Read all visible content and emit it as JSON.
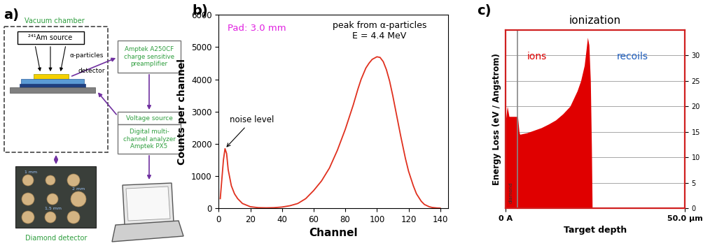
{
  "diagram": {
    "label": "a)",
    "chamber": "Vacuum chamber",
    "source": "²⁴¹Am source",
    "particles": "α-particles",
    "detector": "detector",
    "preamplifier": "Amptek A250CF\ncharge sensitive\npreamplifier",
    "voltage_source": "Voltage source",
    "analyzer": "Digital multi-\nchannel analyzer\nAmptek PX5",
    "photo_caption": "Diamond detector",
    "pad_sizes": [
      "1 mm",
      "2 mm",
      "1,5 mm"
    ]
  },
  "chart_data": [
    {
      "label": "b)",
      "type": "line",
      "color": "#e0301e",
      "x": [
        1,
        2,
        3,
        4,
        5,
        6,
        8,
        10,
        12,
        15,
        20,
        25,
        30,
        35,
        40,
        45,
        50,
        55,
        60,
        65,
        70,
        75,
        80,
        85,
        88,
        90,
        93,
        95,
        97,
        100,
        102,
        104,
        106,
        108,
        110,
        112,
        115,
        118,
        120,
        123,
        125,
        128,
        130,
        133,
        135,
        138,
        140
      ],
      "values": [
        300,
        900,
        1500,
        1850,
        1700,
        1200,
        700,
        450,
        300,
        150,
        50,
        20,
        15,
        20,
        40,
        80,
        150,
        300,
        550,
        850,
        1250,
        1800,
        2450,
        3200,
        3700,
        4000,
        4350,
        4500,
        4620,
        4700,
        4680,
        4550,
        4300,
        3950,
        3500,
        3000,
        2250,
        1550,
        1150,
        700,
        450,
        220,
        120,
        50,
        25,
        10,
        5
      ],
      "xlim": [
        0,
        145
      ],
      "xticks": [
        0,
        20,
        40,
        60,
        80,
        100,
        120,
        140
      ],
      "ylim": [
        0,
        6000
      ],
      "yticks": [
        0,
        1000,
        2000,
        3000,
        4000,
        5000,
        6000
      ],
      "x_label": "Channel",
      "y_label": "Counts per channel",
      "annotations": [
        {
          "text": "Pad: 3.0 mm",
          "color": "#e020e0"
        },
        {
          "text": "peak from α-particles\nE = 4.4 MeV"
        },
        {
          "text": "noise level",
          "x": 4,
          "y": 1850
        }
      ]
    },
    {
      "label": "c)",
      "type": "area",
      "title": "ionization",
      "color": "#e00000",
      "x": [
        0,
        0.5,
        1,
        3.4,
        3.8,
        4,
        6,
        8,
        10,
        12,
        14,
        16,
        18,
        19,
        20,
        21,
        22,
        22.5,
        22.9,
        23.3,
        23.7,
        24,
        24.2,
        50
      ],
      "values": [
        17,
        20,
        18,
        18,
        15,
        14.5,
        14.8,
        15.3,
        15.8,
        16.5,
        17.3,
        18.5,
        20,
        21.5,
        23,
        25,
        28,
        31,
        33.5,
        32,
        25,
        12,
        0,
        0
      ],
      "xlim": [
        0,
        50
      ],
      "xticks": [
        {
          "value": 0,
          "label": "0 A"
        },
        {
          "value": 50,
          "label": "50.0 µm"
        }
      ],
      "ylim": [
        0,
        35
      ],
      "yticks": [
        0,
        5,
        10,
        15,
        20,
        25,
        30
      ],
      "grid": true,
      "x_label": "Target depth",
      "y_label": "Energy Loss (eV / Angstrom)",
      "annotations": [
        {
          "text": "ions",
          "color": "#e00000"
        },
        {
          "text": "recoils",
          "color": "#1f5fbf"
        }
      ],
      "layers": [
        {
          "name": "diamond",
          "end": 3.4
        }
      ]
    }
  ]
}
